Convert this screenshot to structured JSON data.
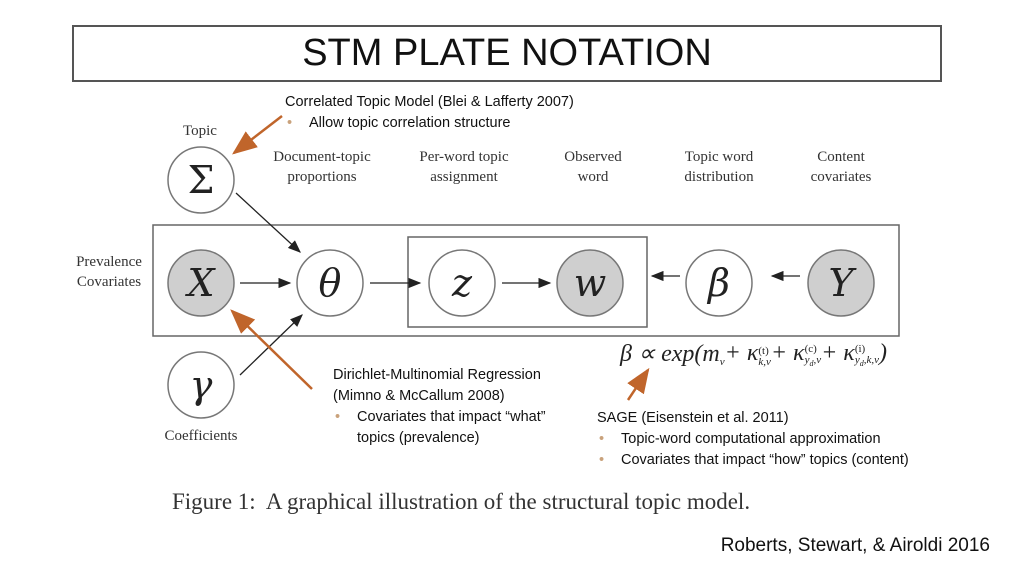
{
  "title": "STM PLATE NOTATION",
  "nodes": [
    {
      "symbol": "Σ",
      "label": "Topic"
    },
    {
      "symbol": "X",
      "label": "Prevalence Covariates"
    },
    {
      "symbol": "θ",
      "label": "Document-topic proportions"
    },
    {
      "symbol": "z",
      "label": "Per-word topic assignment"
    },
    {
      "symbol": "w",
      "label": "Observed word"
    },
    {
      "symbol": "β",
      "label": "Topic word distribution"
    },
    {
      "symbol": "Y",
      "label": "Content covariates"
    },
    {
      "symbol": "γ",
      "label": "Coefficients"
    }
  ],
  "formula": [
    {
      "text": "β ∝ exp(m",
      "sub": "v"
    },
    {
      "text": " + κ",
      "sup": "(t)",
      "sub": "k,v"
    },
    {
      "text": " + κ",
      "sup": "(c)",
      "sub_pre": "y",
      "sub_sub": "d",
      "sub": ",v"
    },
    {
      "text": " + κ",
      "sup": "(i)",
      "sub_pre": "y",
      "sub_sub": "d",
      "sub": ",k,v"
    },
    {
      "text": ")"
    }
  ],
  "annotations": [
    {
      "heading": "Correlated Topic Model (Blei & Lafferty 2007)",
      "bullets": [
        "Allow topic correlation structure"
      ]
    },
    {
      "heading": "Dirichlet-Multinomial Regression (Mimno & McCallum 2008)",
      "bullets": [
        "Covariates that impact “what” topics (prevalence)"
      ]
    },
    {
      "heading": "SAGE (Eisenstein et al. 2011)",
      "bullets": [
        "Topic-word computational approximation",
        "Covariates that impact “how” topics (content)"
      ]
    }
  ],
  "caption": "Figure 1:  A graphical illustration of the structural topic model.",
  "citation": "Roberts, Stewart, & Airoldi 2016"
}
